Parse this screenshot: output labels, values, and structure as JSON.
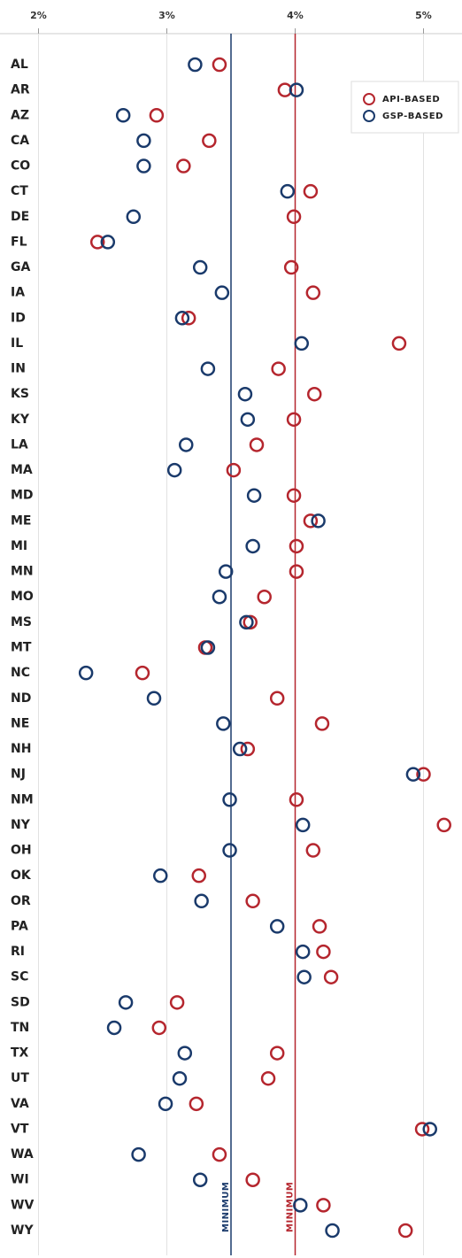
{
  "chart_data": {
    "type": "dot",
    "categories": [
      "AL",
      "AR",
      "AZ",
      "CA",
      "CO",
      "CT",
      "DE",
      "FL",
      "GA",
      "IA",
      "ID",
      "IL",
      "IN",
      "KS",
      "KY",
      "LA",
      "MA",
      "MD",
      "ME",
      "MI",
      "MN",
      "MO",
      "MS",
      "MT",
      "NC",
      "ND",
      "NE",
      "NH",
      "NJ",
      "NM",
      "NY",
      "OH",
      "OK",
      "OR",
      "PA",
      "RI",
      "SC",
      "SD",
      "TN",
      "TX",
      "UT",
      "VA",
      "VT",
      "WA",
      "WI",
      "WV",
      "WY"
    ],
    "series": [
      {
        "name": "API-BASED",
        "color": "#b5262e",
        "values": [
          3.41,
          3.92,
          2.92,
          3.33,
          3.13,
          4.12,
          3.99,
          2.46,
          3.97,
          4.14,
          3.17,
          4.81,
          3.87,
          4.15,
          3.99,
          3.7,
          3.52,
          3.99,
          4.12,
          4.01,
          4.01,
          3.76,
          3.65,
          3.3,
          2.81,
          3.86,
          4.21,
          3.63,
          5.0,
          4.01,
          5.16,
          4.14,
          3.25,
          3.67,
          4.19,
          4.22,
          4.28,
          3.08,
          2.94,
          3.86,
          3.79,
          3.23,
          4.99,
          3.41,
          3.67,
          4.22,
          4.86
        ]
      },
      {
        "name": "GSP-BASED",
        "color": "#1a3a6b",
        "values": [
          3.22,
          4.01,
          2.66,
          2.82,
          2.82,
          3.94,
          2.74,
          2.54,
          3.26,
          3.43,
          3.12,
          4.05,
          3.32,
          3.61,
          3.63,
          3.15,
          3.06,
          3.68,
          4.18,
          3.67,
          3.46,
          3.41,
          3.62,
          3.32,
          2.37,
          2.9,
          3.44,
          3.57,
          4.92,
          3.49,
          4.06,
          3.49,
          2.95,
          3.27,
          3.86,
          4.06,
          4.07,
          2.68,
          2.59,
          3.14,
          3.1,
          2.99,
          5.05,
          2.78,
          3.26,
          4.04,
          4.29
        ]
      }
    ],
    "xlim": [
      1.7,
      5.3
    ],
    "xticks": [
      {
        "value": 2,
        "label": "2%"
      },
      {
        "value": 3,
        "label": "3%"
      },
      {
        "value": 4,
        "label": "4%"
      },
      {
        "value": 5,
        "label": "5%"
      }
    ],
    "grid": true,
    "legend": "upper right",
    "reference_lines": [
      {
        "value": 3.5,
        "label": "MINIMUM",
        "color": "#1a3a6b"
      },
      {
        "value": 4.0,
        "label": "MINIMUM",
        "color": "#b5262e"
      }
    ]
  }
}
